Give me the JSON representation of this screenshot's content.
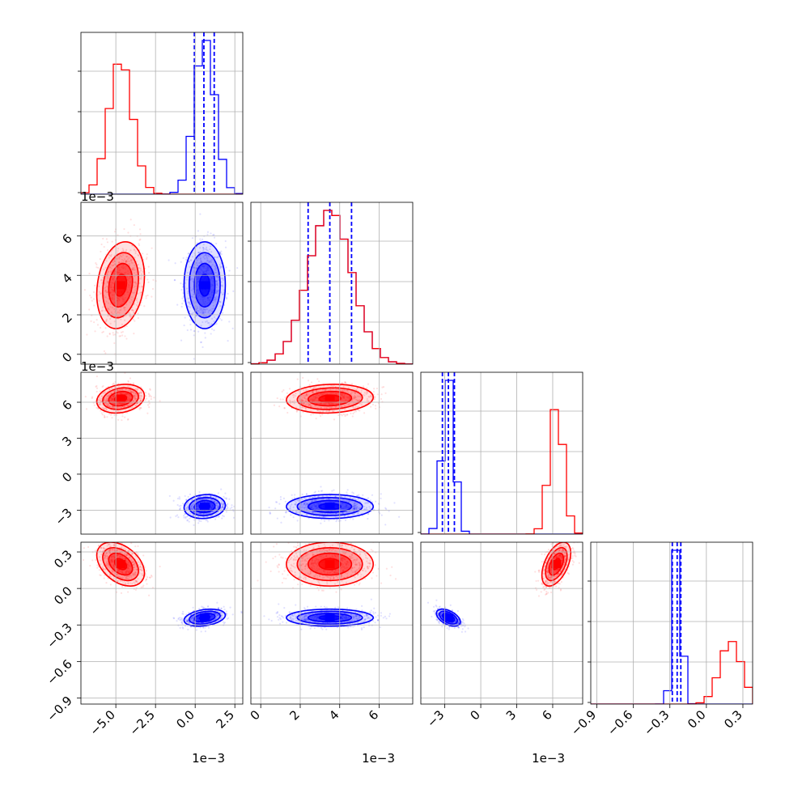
{
  "chart_data": {
    "type": "corner",
    "title": "",
    "colors": {
      "primary": "#0000ff",
      "secondary": "#ff0000",
      "grid": "#b0b0b0"
    },
    "parameters": [
      {
        "range": [
          -7.2,
          3.0
        ],
        "ticks": [
          -5.0,
          -2.5,
          0.0,
          2.5
        ],
        "tick_labels": [
          "−5.0",
          "−2.5",
          "0.0",
          "2.5"
        ],
        "offset_label": "1e−3"
      },
      {
        "range": [
          -0.5,
          7.7
        ],
        "ticks": [
          0,
          2,
          4,
          6
        ],
        "tick_labels": [
          "0",
          "2",
          "4",
          "6"
        ],
        "offset_label": "1e−3"
      },
      {
        "range": [
          -5.0,
          8.5
        ],
        "ticks": [
          -3,
          0,
          3,
          6
        ],
        "tick_labels": [
          "−3",
          "0",
          "3",
          "6"
        ],
        "offset_label": "1e−3"
      },
      {
        "range": [
          -0.95,
          0.38
        ],
        "ticks": [
          -0.9,
          -0.6,
          -0.3,
          0.0,
          0.3
        ],
        "tick_labels": [
          "−0.9",
          "−0.6",
          "−0.3",
          "0.0",
          "0.3"
        ],
        "offset_label": ""
      }
    ],
    "series": [
      {
        "color": "#0000ff",
        "params": [
          {
            "mean": 0.6,
            "sd": 0.65,
            "quantiles": [
              -0.05,
              0.55,
              1.2
            ]
          },
          {
            "mean": 3.5,
            "sd": 1.1,
            "quantiles": [
              2.4,
              3.5,
              4.6
            ]
          },
          {
            "mean": -2.7,
            "sd": 0.5,
            "quantiles": [
              -3.2,
              -2.7,
              -2.2
            ]
          },
          {
            "mean": -0.24,
            "sd": 0.035,
            "quantiles": [
              -0.28,
              -0.24,
              -0.21
            ]
          }
        ]
      },
      {
        "color": "#ff0000",
        "params": [
          {
            "mean": -4.7,
            "sd": 0.75
          },
          {
            "mean": 3.5,
            "sd": 1.1
          },
          {
            "mean": 6.3,
            "sd": 0.6
          },
          {
            "mean": 0.2,
            "sd": 0.09
          }
        ]
      }
    ],
    "correlations": [
      {
        "pair": [
          1,
          0
        ],
        "blue": 0.0,
        "red": 0.2
      },
      {
        "pair": [
          2,
          0
        ],
        "blue": 0.1,
        "red": 0.2
      },
      {
        "pair": [
          2,
          1
        ],
        "blue": 0.0,
        "red": 0.1
      },
      {
        "pair": [
          3,
          0
        ],
        "blue": 0.3,
        "red": -0.4
      },
      {
        "pair": [
          3,
          1
        ],
        "blue": 0.0,
        "red": 0.0
      },
      {
        "pair": [
          3,
          2
        ],
        "blue": -0.5,
        "red": 0.5
      }
    ],
    "grid": true
  }
}
